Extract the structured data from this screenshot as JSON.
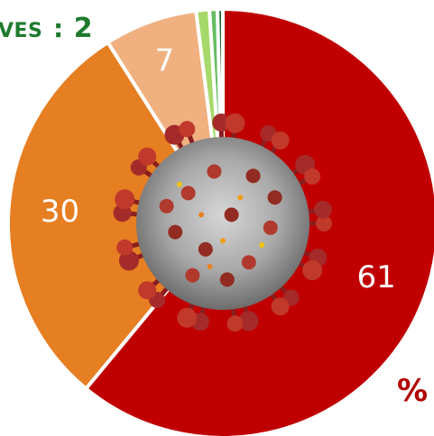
{
  "header": {
    "label": "VES",
    "separator": ":",
    "value": "2"
  },
  "percent_symbol": "%",
  "colors": {
    "header_text": "#1f7a2e",
    "percent_text": "#b00000"
  },
  "center_image": "coronavirus-virion-illustration",
  "chart_data": {
    "type": "pie",
    "start_angle_deg": 0,
    "direction": "clockwise",
    "slices": [
      {
        "value": 61,
        "label": "61",
        "color": "#c00000"
      },
      {
        "value": 30,
        "label": "30",
        "color": "#e67e22"
      },
      {
        "value": 7,
        "label": "7",
        "color": "#f0b080"
      },
      {
        "value": 1,
        "label": "",
        "color": "#a6d96a"
      },
      {
        "value": 0.6,
        "label": "",
        "color": "#66bd63"
      },
      {
        "value": 0.4,
        "label": "",
        "color": "#1a6b2a"
      }
    ]
  }
}
